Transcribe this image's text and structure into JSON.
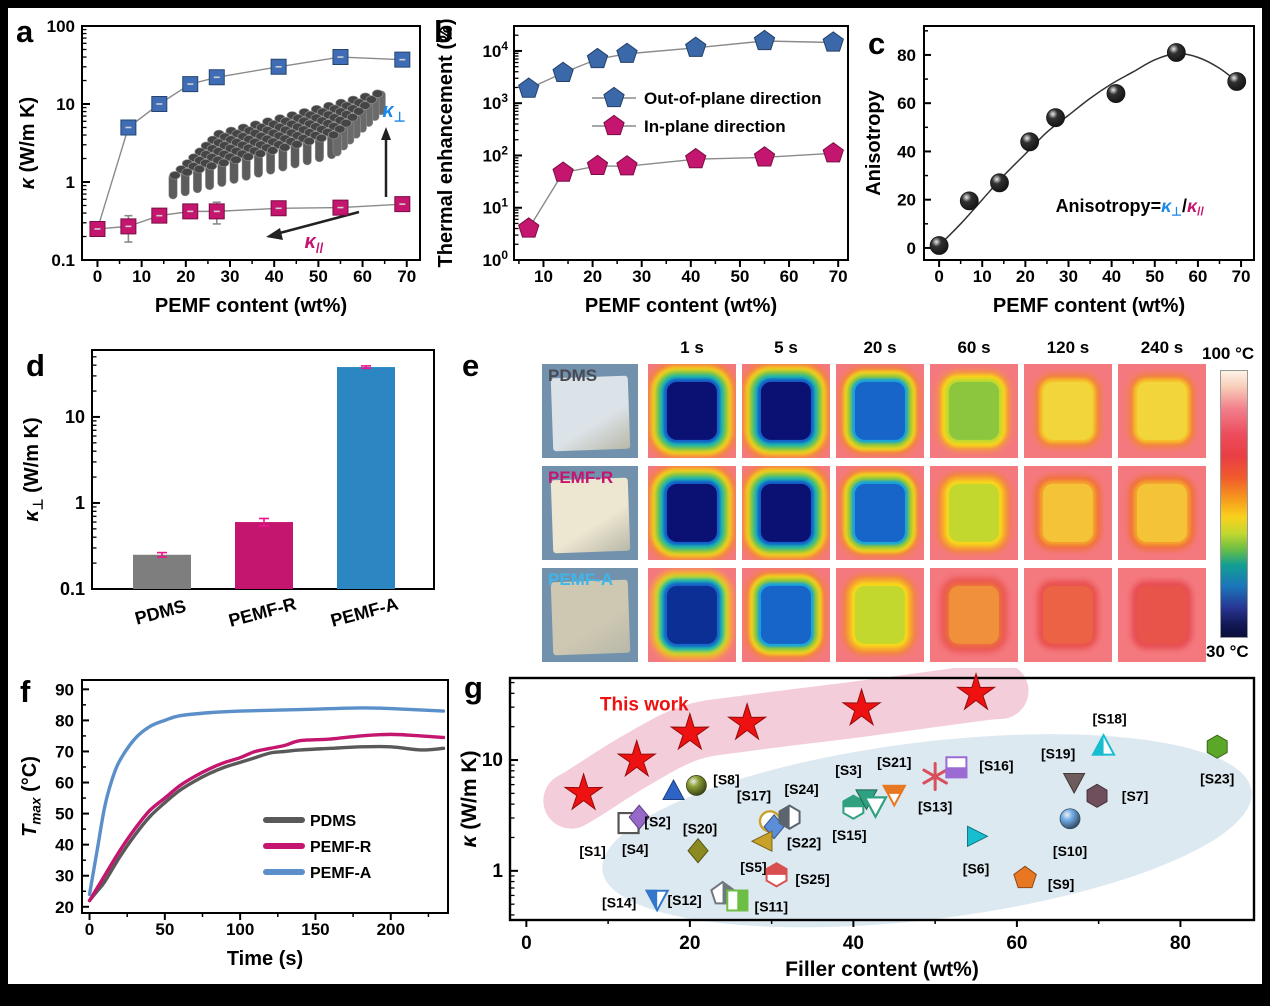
{
  "figure": {
    "panel_letters": {
      "a": "a",
      "b": "b",
      "c": "c",
      "d": "d",
      "e": "e",
      "f": "f",
      "g": "g"
    }
  },
  "chart_data": [
    {
      "id": "a",
      "type": "line",
      "xlabel": "PEMF content (wt%)",
      "ylabel_parts": [
        {
          "t": "κ",
          "i": true
        },
        {
          "t": " (W/m K)"
        }
      ],
      "xticks": [
        0,
        10,
        20,
        30,
        40,
        50,
        60,
        70
      ],
      "xrange": [
        -3.5,
        73
      ],
      "ylog": [
        0.1,
        100
      ],
      "ylog_labels": [
        "0.1",
        "1",
        "10",
        "100"
      ],
      "x": [
        0,
        7,
        14,
        21,
        27,
        41,
        55,
        69
      ],
      "series": [
        {
          "name": "out-of-plane",
          "marker": "square",
          "color": "#3E6DB5",
          "values": [
            0.25,
            5,
            10,
            18,
            22,
            30,
            40,
            37
          ],
          "skip_first_marker": true
        },
        {
          "name": "in-plane",
          "marker": "square",
          "color": "#C4156F",
          "values": [
            0.25,
            0.27,
            0.37,
            0.42,
            0.42,
            0.46,
            0.47,
            0.52
          ],
          "yerr": [
            0.012,
            0.1,
            0.035,
            0.045,
            0.13,
            0.02,
            0.07,
            0.03
          ]
        }
      ],
      "inset": {
        "kperp_parts": [
          {
            "t": "κ",
            "i": true
          },
          {
            "t": "⊥",
            "sub": true
          }
        ],
        "kperp_color": "#1B87E8",
        "kpar_parts": [
          {
            "t": "κ",
            "i": true
          },
          {
            "t": "//",
            "sub": true
          }
        ],
        "kpar_color": "#C4156F"
      }
    },
    {
      "id": "b",
      "type": "line",
      "xlabel": "PEMF content (wt%)",
      "ylabel": "Thermal enhancement (%)",
      "xticks": [
        10,
        20,
        30,
        40,
        50,
        60,
        70
      ],
      "xrange": [
        4,
        72
      ],
      "ylog": [
        1,
        30000
      ],
      "ylog_exp_labels": [
        0,
        1,
        2,
        3,
        4
      ],
      "x": [
        7,
        14,
        21,
        27,
        41,
        55,
        69
      ],
      "series": [
        {
          "name": "Out-of-plane direction",
          "marker": "pentagon",
          "color": "#3A68A8",
          "values": [
            1900,
            3800,
            7000,
            8800,
            11500,
            15500,
            14500
          ]
        },
        {
          "name": "In-plane direction",
          "marker": "pentagon",
          "color": "#C4156F",
          "values": [
            4,
            47,
            63,
            62,
            85,
            92,
            110
          ]
        }
      ],
      "legend": [
        "Out-of-plane direction",
        "In-plane direction"
      ]
    },
    {
      "id": "c",
      "type": "scatter",
      "xlabel": "PEMF content (wt%)",
      "ylabel": "Anisotropy",
      "xticks": [
        0,
        10,
        20,
        30,
        40,
        50,
        60,
        70
      ],
      "xrange": [
        -3.5,
        73
      ],
      "yticks": [
        0,
        20,
        40,
        60,
        80
      ],
      "yrange": [
        -5,
        92
      ],
      "x": [
        0,
        7,
        14,
        21,
        27,
        41,
        55,
        69
      ],
      "values": [
        1,
        19.5,
        27,
        44,
        54,
        64,
        81,
        69
      ],
      "curve": [
        [
          0,
          1
        ],
        [
          5,
          10
        ],
        [
          10,
          20
        ],
        [
          15,
          30
        ],
        [
          20,
          39
        ],
        [
          25,
          48
        ],
        [
          30,
          55
        ],
        [
          35,
          62
        ],
        [
          40,
          68
        ],
        [
          45,
          73
        ],
        [
          50,
          78
        ],
        [
          55,
          80.5
        ],
        [
          60,
          79
        ],
        [
          65,
          74.5
        ],
        [
          69,
          69
        ]
      ],
      "annotation_parts": [
        {
          "t": "Anisotropy=",
          "c": "#000000"
        },
        {
          "t": "κ",
          "c": "#1B87E8",
          "i": true
        },
        {
          "t": "⊥",
          "c": "#1B87E8",
          "sub": true
        },
        {
          "t": "/",
          "c": "#000000"
        },
        {
          "t": "κ",
          "c": "#C4156F",
          "i": true
        },
        {
          "t": "//",
          "c": "#C4156F",
          "sub": true
        }
      ]
    },
    {
      "id": "d",
      "type": "bar",
      "ylabel_parts": [
        {
          "t": "κ",
          "i": true
        },
        {
          "t": "⊥",
          "sub": true
        },
        {
          "t": " (W/m K)"
        }
      ],
      "ylog": [
        0.1,
        60
      ],
      "ylog_labels": [
        "0.1",
        "1",
        "10"
      ],
      "categories": [
        "PDMS",
        "PEMF-R",
        "PEMF-A"
      ],
      "values": [
        0.25,
        0.6,
        38
      ],
      "errors": [
        0.015,
        0.06,
        1.2
      ],
      "bar_colors": [
        "#7E7E7E",
        "#C4156F",
        "#2B86C1"
      ],
      "error_color": "#F0138C"
    },
    {
      "id": "f",
      "type": "line",
      "xlabel": "Time (s)",
      "ylabel_parts": [
        {
          "t": "T",
          "i": true
        },
        {
          "t": "max",
          "sub": true,
          "i": true
        },
        {
          "t": " (°C)"
        }
      ],
      "xticks": [
        0,
        50,
        100,
        150,
        200
      ],
      "xrange": [
        -5,
        238
      ],
      "yticks": [
        20,
        30,
        40,
        50,
        60,
        70,
        80,
        90
      ],
      "yrange": [
        18,
        93
      ],
      "series": [
        {
          "name": "PDMS",
          "color": "#595959",
          "points": [
            [
              0,
              22
            ],
            [
              5,
              25
            ],
            [
              10,
              28
            ],
            [
              20,
              36
            ],
            [
              30,
              43
            ],
            [
              40,
              49
            ],
            [
              50,
              53.5
            ],
            [
              60,
              57.5
            ],
            [
              70,
              60.5
            ],
            [
              80,
              63
            ],
            [
              90,
              65
            ],
            [
              100,
              66.5
            ],
            [
              110,
              68
            ],
            [
              120,
              69.5
            ],
            [
              130,
              70
            ],
            [
              140,
              70.5
            ],
            [
              160,
              71
            ],
            [
              180,
              71.5
            ],
            [
              200,
              71.5
            ],
            [
              220,
              70.5
            ],
            [
              235,
              71
            ]
          ]
        },
        {
          "name": "PEMF-R",
          "color": "#C4156F",
          "points": [
            [
              0,
              22
            ],
            [
              5,
              26
            ],
            [
              10,
              30
            ],
            [
              20,
              38
            ],
            [
              30,
              45
            ],
            [
              40,
              51
            ],
            [
              50,
              55
            ],
            [
              60,
              59
            ],
            [
              70,
              62
            ],
            [
              80,
              64.5
            ],
            [
              90,
              66.5
            ],
            [
              100,
              68
            ],
            [
              110,
              70
            ],
            [
              120,
              71
            ],
            [
              130,
              72
            ],
            [
              140,
              73.5
            ],
            [
              160,
              74
            ],
            [
              180,
              75
            ],
            [
              200,
              75.5
            ],
            [
              220,
              75
            ],
            [
              235,
              74.5
            ]
          ]
        },
        {
          "name": "PEMF-A",
          "color": "#5B8FC9",
          "points": [
            [
              0,
              24
            ],
            [
              5,
              38
            ],
            [
              10,
              52
            ],
            [
              15,
              61
            ],
            [
              20,
              67
            ],
            [
              30,
              74
            ],
            [
              40,
              78
            ],
            [
              50,
              80
            ],
            [
              60,
              81.5
            ],
            [
              80,
              82.5
            ],
            [
              100,
              83
            ],
            [
              140,
              83.5
            ],
            [
              180,
              84
            ],
            [
              200,
              83.8
            ],
            [
              235,
              83
            ]
          ]
        }
      ],
      "legend": [
        "PDMS",
        "PEMF-R",
        "PEMF-A"
      ]
    },
    {
      "id": "g",
      "type": "scatter",
      "xlabel": "Filler content (wt%)",
      "ylabel_parts": [
        {
          "t": "κ",
          "i": true
        },
        {
          "t": " (W/m K)"
        }
      ],
      "xticks": [
        0,
        20,
        40,
        60,
        80
      ],
      "xrange": [
        -2,
        89
      ],
      "ylog": [
        0.36,
        55
      ],
      "ylog_labels": [
        "1",
        "10"
      ],
      "this_work_label": "This work",
      "this_work_color": "#EE1111",
      "stars": [
        [
          7,
          5
        ],
        [
          13.5,
          10
        ],
        [
          20,
          17.5
        ],
        [
          27,
          21.5
        ],
        [
          41,
          29
        ],
        [
          55,
          40
        ]
      ],
      "blobs": {
        "pink": "#F2C4D3",
        "blue": "#D9E7F0",
        "blue_ellipse": {
          "cx": 49,
          "cy": 2.3,
          "rxw": 40,
          "rylog": 0.8,
          "rot": -7
        }
      },
      "points": [
        {
          "ref": "[S1]",
          "x": 12.5,
          "y": 2.7,
          "shape": "square",
          "style": "open",
          "color": "#555555",
          "lab": [
            -36,
            28
          ]
        },
        {
          "ref": "[S4]",
          "x": 13.8,
          "y": 3.05,
          "shape": "diamond",
          "style": "solid",
          "color": "#9668C8",
          "lab": [
            -4,
            32
          ]
        },
        {
          "ref": "[S2]",
          "x": 18,
          "y": 5.2,
          "shape": "triangle-up",
          "style": "solid",
          "color": "#2E64C7",
          "lab": [
            -16,
            30
          ]
        },
        {
          "ref": "[S8]",
          "x": 20.8,
          "y": 5.9,
          "shape": "sphere",
          "style": "solid",
          "color": "#7A8B2F",
          "lab": [
            30,
            -6
          ]
        },
        {
          "ref": "[S20]",
          "x": 21,
          "y": 1.52,
          "shape": "diamond",
          "style": "solid",
          "color": "#8A8A20",
          "lab": [
            2,
            -22
          ]
        },
        {
          "ref": "[S14]",
          "x": 16,
          "y": 0.56,
          "shape": "triangle-down",
          "style": "half-l",
          "color": "#3377CC",
          "lab": [
            -38,
            4
          ]
        },
        {
          "ref": "[S12]",
          "x": 24,
          "y": 0.62,
          "shape": "pentagon",
          "style": "half-r",
          "color": "#707880",
          "lab": [
            -38,
            6
          ]
        },
        {
          "ref": "[S11]",
          "x": 25.8,
          "y": 0.54,
          "shape": "square",
          "style": "half-r",
          "color": "#6CBE45",
          "lab": [
            34,
            6
          ]
        },
        {
          "ref": "[S17]",
          "x": 29.8,
          "y": 2.8,
          "shape": "circle",
          "style": "open",
          "color": "#C8A228",
          "lab": [
            -16,
            -26
          ]
        },
        {
          "ref": "[S22]",
          "x": 30.3,
          "y": 2.5,
          "shape": "diamond",
          "style": "solid",
          "color": "#5B8DD9",
          "lab": [
            30,
            16
          ]
        },
        {
          "ref": "[S24]",
          "x": 32.2,
          "y": 3.05,
          "shape": "hexagon",
          "style": "half-l",
          "color": "#5A6570",
          "lab": [
            12,
            -28
          ]
        },
        {
          "ref": "[S5]",
          "x": 29,
          "y": 1.85,
          "shape": "triangle-left",
          "style": "solid",
          "color": "#C8A228",
          "lab": [
            -10,
            26
          ]
        },
        {
          "ref": "[S25]",
          "x": 30.6,
          "y": 0.92,
          "shape": "hexagon",
          "style": "half-t",
          "color": "#D94F4F",
          "lab": [
            36,
            4
          ]
        },
        {
          "ref": "[S15]",
          "x": 40,
          "y": 3.75,
          "shape": "hexagon",
          "style": "half-t",
          "color": "#2FA080",
          "lab": [
            -4,
            28
          ]
        },
        {
          "ref": "[S3]",
          "x": 41.6,
          "y": 4.55,
          "shape": "triangle-down",
          "style": "solid",
          "color": "#2FA080",
          "lab": [
            -18,
            -28
          ]
        },
        {
          "ref": "",
          "x": 42.7,
          "y": 3.9,
          "shape": "triangle-down",
          "style": "open",
          "color": "#2FA080",
          "lab": null
        },
        {
          "ref": "[S21]",
          "x": 45,
          "y": 4.95,
          "shape": "triangle-down",
          "style": "half-t",
          "color": "#E87722",
          "lab": [
            0,
            -32
          ]
        },
        {
          "ref": "[S13]",
          "x": 50,
          "y": 7.1,
          "shape": "asterisk",
          "style": "solid",
          "color": "#D94F5C",
          "lab": [
            0,
            30
          ]
        },
        {
          "ref": "[S16]",
          "x": 52.6,
          "y": 8.6,
          "shape": "square",
          "style": "half-b",
          "color": "#9B6BD3",
          "lab": [
            40,
            -2
          ]
        },
        {
          "ref": "[S6]",
          "x": 55,
          "y": 2.05,
          "shape": "triangle-right",
          "style": "solid",
          "color": "#17BECF",
          "lab": [
            0,
            32
          ]
        },
        {
          "ref": "[S9]",
          "x": 61,
          "y": 0.86,
          "shape": "pentagon",
          "style": "solid",
          "color": "#E87722",
          "lab": [
            36,
            6
          ]
        },
        {
          "ref": "[S10]",
          "x": 66.5,
          "y": 2.95,
          "shape": "sphere",
          "style": "solid",
          "color": "#6699CC",
          "lab": [
            0,
            32
          ]
        },
        {
          "ref": "[S19]",
          "x": 67,
          "y": 6.4,
          "shape": "triangle-down",
          "style": "solid",
          "color": "#6E5B5B",
          "lab": [
            -16,
            -28
          ]
        },
        {
          "ref": "[S7]",
          "x": 69.8,
          "y": 4.75,
          "shape": "hexagon",
          "style": "solid",
          "color": "#6E4F5B",
          "lab": [
            38,
            0
          ]
        },
        {
          "ref": "[S18]",
          "x": 70.6,
          "y": 13.2,
          "shape": "triangle-up",
          "style": "half-l",
          "color": "#17BECF",
          "lab": [
            6,
            -28
          ]
        },
        {
          "ref": "[S23]",
          "x": 84.5,
          "y": 13.2,
          "shape": "hexagon",
          "style": "solid",
          "color": "#5BA829",
          "lab": [
            0,
            32
          ]
        }
      ]
    }
  ],
  "panel_e": {
    "times": [
      "1 s",
      "5 s",
      "20 s",
      "60 s",
      "120 s",
      "240 s"
    ],
    "colorbar": {
      "top": "100 °C",
      "bottom": "30 °C"
    },
    "rows": [
      {
        "label": "PDMS",
        "label_color": "#4A4A52",
        "photo_color": "#DCE3E8",
        "levels": [
          "navy",
          "navy",
          "blue",
          "green",
          "yellow",
          "yellow"
        ]
      },
      {
        "label": "PEMF-R",
        "label_color": "#C4156F",
        "photo_color": "#EDE6D0",
        "levels": [
          "navy",
          "navy",
          "blue",
          "ygreen",
          "yorange",
          "yorange"
        ]
      },
      {
        "label": "PEMF-A",
        "label_color": "#3FB6E8",
        "photo_color": "#CEC8B2",
        "levels": [
          "dkblue",
          "blue",
          "ygreen",
          "orange",
          "rorange",
          "red"
        ]
      }
    ]
  }
}
